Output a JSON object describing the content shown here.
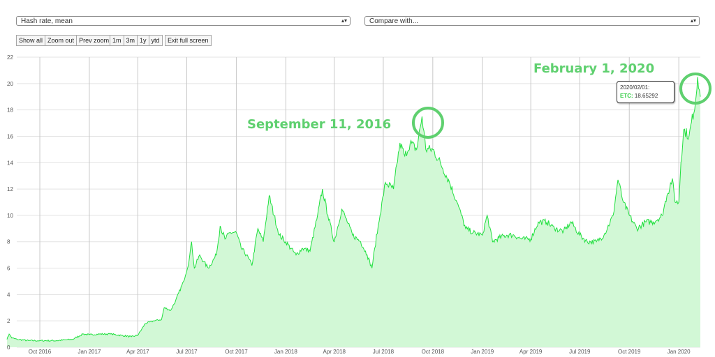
{
  "controls": {
    "metric_select": "Hash rate, mean",
    "compare_select": "Compare with...",
    "buttons_a": [
      "Show all",
      "Zoom out",
      "Prev zoom"
    ],
    "buttons_b": [
      "1m",
      "3m",
      "1y",
      "ytd"
    ],
    "buttons_c": [
      "Exit full screen"
    ]
  },
  "annotations": {
    "peak1_label": "September 11, 2016",
    "peak2_label": "February 1, 2020"
  },
  "tooltip": {
    "date": "2020/02/01:",
    "series": "ETC:",
    "value": "18.65292"
  },
  "colors": {
    "line": "#22e040",
    "fill": "#d2f8d6",
    "annotation": "#5fd06f"
  },
  "chart_data": {
    "type": "area",
    "title": "",
    "xlabel": "",
    "ylabel": "",
    "ylim": [
      0,
      22
    ],
    "yticks": [
      0,
      2,
      4,
      6,
      8,
      10,
      12,
      14,
      16,
      18,
      20,
      22
    ],
    "xlim": [
      "2016-08-01",
      "2020-02-10"
    ],
    "xticks": [
      {
        "date": "2016-10-01",
        "label": "Oct 2016"
      },
      {
        "date": "2017-01-01",
        "label": "Jan 2017"
      },
      {
        "date": "2017-04-01",
        "label": "Apr 2017"
      },
      {
        "date": "2017-07-01",
        "label": "Jul 2017"
      },
      {
        "date": "2017-10-01",
        "label": "Oct 2017"
      },
      {
        "date": "2018-01-01",
        "label": "Jan 2018"
      },
      {
        "date": "2018-04-01",
        "label": "Apr 2018"
      },
      {
        "date": "2018-07-01",
        "label": "Jul 2018"
      },
      {
        "date": "2018-10-01",
        "label": "Oct 2018"
      },
      {
        "date": "2019-01-01",
        "label": "Jan 2019"
      },
      {
        "date": "2019-04-01",
        "label": "Apr 2019"
      },
      {
        "date": "2019-07-01",
        "label": "Jul 2019"
      },
      {
        "date": "2019-10-01",
        "label": "Oct 2019"
      },
      {
        "date": "2020-01-01",
        "label": "Jan 2020"
      }
    ],
    "grid": true,
    "series": [
      {
        "points": [
          [
            "2016-08-01",
            0.6
          ],
          [
            "2016-08-05",
            1.0
          ],
          [
            "2016-08-10",
            0.7
          ],
          [
            "2016-08-20",
            0.6
          ],
          [
            "2016-09-10",
            0.5
          ],
          [
            "2016-10-01",
            0.5
          ],
          [
            "2016-11-01",
            0.5
          ],
          [
            "2016-12-01",
            0.6
          ],
          [
            "2016-12-20",
            1.0
          ],
          [
            "2017-01-01",
            0.95
          ],
          [
            "2017-01-20",
            1.0
          ],
          [
            "2017-02-10",
            1.0
          ],
          [
            "2017-03-01",
            0.9
          ],
          [
            "2017-03-20",
            0.8
          ],
          [
            "2017-04-01",
            0.9
          ],
          [
            "2017-04-15",
            1.8
          ],
          [
            "2017-05-01",
            2.0
          ],
          [
            "2017-05-15",
            2.1
          ],
          [
            "2017-05-20",
            3.0
          ],
          [
            "2017-06-01",
            2.8
          ],
          [
            "2017-06-10",
            3.5
          ],
          [
            "2017-06-25",
            5.0
          ],
          [
            "2017-07-05",
            6.5
          ],
          [
            "2017-07-10",
            8.0
          ],
          [
            "2017-07-15",
            6.0
          ],
          [
            "2017-07-25",
            7.0
          ],
          [
            "2017-08-01",
            6.5
          ],
          [
            "2017-08-10",
            6.0
          ],
          [
            "2017-08-25",
            7.0
          ],
          [
            "2017-09-01",
            9.2
          ],
          [
            "2017-09-10",
            8.2
          ],
          [
            "2017-09-20",
            8.7
          ],
          [
            "2017-10-01",
            8.7
          ],
          [
            "2017-10-10",
            7.5
          ],
          [
            "2017-10-20",
            7.0
          ],
          [
            "2017-10-30",
            6.2
          ],
          [
            "2017-11-10",
            9.0
          ],
          [
            "2017-11-20",
            8.0
          ],
          [
            "2017-12-01",
            11.5
          ],
          [
            "2017-12-10",
            10.0
          ],
          [
            "2017-12-20",
            8.5
          ],
          [
            "2018-01-01",
            8.0
          ],
          [
            "2018-01-10",
            7.5
          ],
          [
            "2018-01-20",
            7.0
          ],
          [
            "2018-02-01",
            7.5
          ],
          [
            "2018-02-15",
            7.3
          ],
          [
            "2018-03-01",
            10.0
          ],
          [
            "2018-03-10",
            12.0
          ],
          [
            "2018-03-20",
            10.0
          ],
          [
            "2018-04-01",
            8.0
          ],
          [
            "2018-04-15",
            10.5
          ],
          [
            "2018-04-25",
            9.5
          ],
          [
            "2018-05-05",
            8.5
          ],
          [
            "2018-05-20",
            8.0
          ],
          [
            "2018-06-01",
            7.0
          ],
          [
            "2018-06-10",
            6.0
          ],
          [
            "2018-06-15",
            7.5
          ],
          [
            "2018-06-25",
            10.0
          ],
          [
            "2018-07-05",
            12.5
          ],
          [
            "2018-07-20",
            12.0
          ],
          [
            "2018-08-01",
            15.5
          ],
          [
            "2018-08-10",
            14.5
          ],
          [
            "2018-08-20",
            15.5
          ],
          [
            "2018-09-01",
            15.0
          ],
          [
            "2018-09-11",
            17.5
          ],
          [
            "2018-09-18",
            15.0
          ],
          [
            "2018-10-01",
            15.0
          ],
          [
            "2018-10-15",
            14.0
          ],
          [
            "2018-11-01",
            12.5
          ],
          [
            "2018-11-15",
            11.0
          ],
          [
            "2018-12-01",
            9.0
          ],
          [
            "2018-12-15",
            8.7
          ],
          [
            "2019-01-01",
            8.5
          ],
          [
            "2019-01-10",
            10.0
          ],
          [
            "2019-01-20",
            8.0
          ],
          [
            "2019-02-01",
            8.3
          ],
          [
            "2019-02-15",
            8.5
          ],
          [
            "2019-03-01",
            8.5
          ],
          [
            "2019-03-15",
            8.2
          ],
          [
            "2019-04-01",
            8.2
          ],
          [
            "2019-04-15",
            9.5
          ],
          [
            "2019-05-01",
            9.5
          ],
          [
            "2019-05-15",
            9.0
          ],
          [
            "2019-06-01",
            8.8
          ],
          [
            "2019-06-15",
            9.5
          ],
          [
            "2019-07-01",
            8.5
          ],
          [
            "2019-07-15",
            8.0
          ],
          [
            "2019-08-01",
            8.0
          ],
          [
            "2019-08-15",
            8.5
          ],
          [
            "2019-09-01",
            10.0
          ],
          [
            "2019-09-10",
            12.7
          ],
          [
            "2019-09-20",
            11.0
          ],
          [
            "2019-10-01",
            10.0
          ],
          [
            "2019-10-15",
            9.0
          ],
          [
            "2019-11-01",
            9.5
          ],
          [
            "2019-11-15",
            9.5
          ],
          [
            "2019-12-01",
            10.0
          ],
          [
            "2019-12-10",
            11.5
          ],
          [
            "2019-12-20",
            12.8
          ],
          [
            "2019-12-25",
            11.0
          ],
          [
            "2020-01-01",
            11.0
          ],
          [
            "2020-01-05",
            14.0
          ],
          [
            "2020-01-10",
            16.5
          ],
          [
            "2020-01-20",
            16.0
          ],
          [
            "2020-02-01",
            18.65
          ],
          [
            "2020-02-05",
            20.5
          ],
          [
            "2020-02-10",
            19.0
          ]
        ]
      }
    ]
  }
}
